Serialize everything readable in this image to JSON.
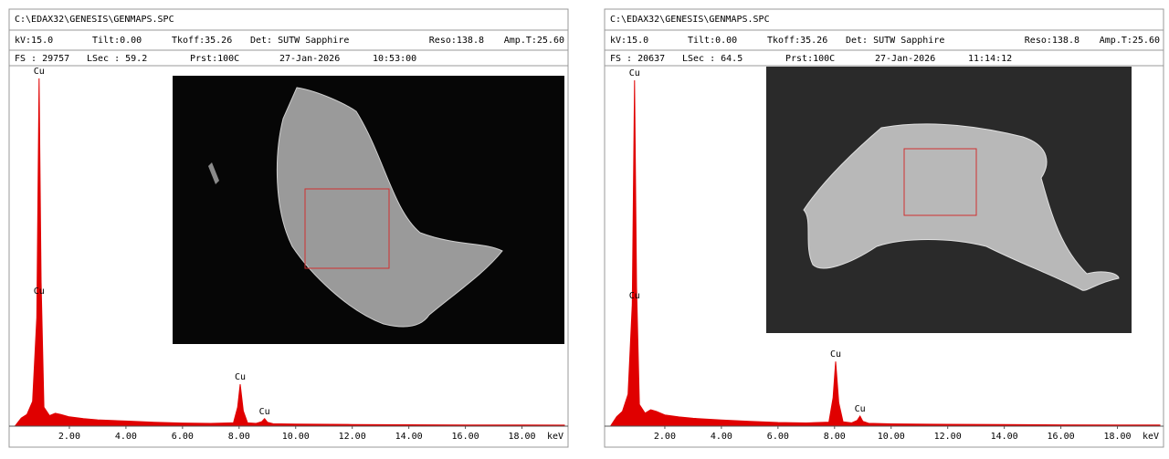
{
  "chart_data": [
    {
      "type": "area",
      "path": "C:\\EDAX32\\GENESIS\\GENMAPS.SPC",
      "kv": "kV:15.0",
      "tilt": "Tilt:0.00",
      "tkoff": "Tkoff:35.26",
      "det": "Det: SUTW Sapphire",
      "reso": "Reso:138.8",
      "amp": "Amp.T:25.60",
      "fs": "FS : 29757",
      "lsec": "LSec : 59.2",
      "prst": "Prst:100C",
      "date": "27-Jan-2026",
      "time": "10:53:00",
      "x_label": "keV",
      "color": "#e00000",
      "x": [
        0.1,
        0.2,
        0.3,
        0.5,
        0.7,
        0.85,
        0.93,
        1.0,
        1.1,
        1.3,
        1.5,
        1.7,
        2.0,
        2.5,
        3,
        4,
        5,
        6,
        7,
        7.8,
        7.95,
        8.04,
        8.15,
        8.3,
        8.6,
        8.8,
        8.9,
        9.0,
        9.2,
        10,
        12,
        14,
        16,
        18,
        19.5
      ],
      "values": [
        0,
        300,
        600,
        900,
        2000,
        9000,
        29000,
        12000,
        1500,
        800,
        1000,
        900,
        700,
        550,
        450,
        350,
        250,
        180,
        150,
        200,
        1500,
        3430,
        1200,
        200,
        150,
        300,
        550,
        250,
        120,
        90,
        60,
        40,
        25,
        15,
        10
      ],
      "xlim": [
        0,
        19.5
      ],
      "ylim": [
        0,
        29757
      ],
      "xticks": [
        {
          "value": 2,
          "label": "2.00"
        },
        {
          "value": 4,
          "label": "4.00"
        },
        {
          "value": 6,
          "label": "6.00"
        },
        {
          "value": 8,
          "label": "8.00"
        },
        {
          "value": 10,
          "label": "10.00"
        },
        {
          "value": 12,
          "label": "12.00"
        },
        {
          "value": 14,
          "label": "14.00"
        },
        {
          "value": 16,
          "label": "16.00"
        },
        {
          "value": 18,
          "label": "18.00"
        }
      ],
      "peak_labels": [
        {
          "text": "Cu",
          "x": 0.93,
          "y": 29000
        },
        {
          "text": "Cu",
          "x": 0.93,
          "y": 10600
        },
        {
          "text": "Cu",
          "x": 8.04,
          "y": 3430
        },
        {
          "text": "Cu",
          "x": 8.9,
          "y": 550
        }
      ]
    },
    {
      "type": "area",
      "path": "C:\\EDAX32\\GENESIS\\GENMAPS.SPC",
      "kv": "kV:15.0",
      "tilt": "Tilt:0.00",
      "tkoff": "Tkoff:35.26",
      "det": "Det: SUTW Sapphire",
      "reso": "Reso:138.8",
      "amp": "Amp.T:25.60",
      "fs": "FS : 20637",
      "lsec": "LSec : 64.5",
      "prst": "Prst:100C",
      "date": "27-Jan-2026",
      "time": "11:14:12",
      "x_label": "keV",
      "color": "#e00000",
      "x": [
        0.1,
        0.2,
        0.3,
        0.5,
        0.7,
        0.85,
        0.93,
        1.0,
        1.1,
        1.3,
        1.5,
        1.7,
        2.0,
        2.5,
        3,
        4,
        5,
        6,
        7,
        7.8,
        7.95,
        8.04,
        8.15,
        8.3,
        8.6,
        8.8,
        8.9,
        9.0,
        9.2,
        10,
        12,
        14,
        16,
        18,
        19.5
      ],
      "values": [
        0,
        250,
        500,
        800,
        1800,
        7000,
        20000,
        8000,
        1200,
        700,
        900,
        800,
        600,
        480,
        400,
        300,
        220,
        160,
        130,
        180,
        1600,
        3700,
        1300,
        200,
        140,
        280,
        530,
        230,
        110,
        80,
        55,
        35,
        22,
        14,
        9
      ],
      "xlim": [
        0,
        19.5
      ],
      "ylim": [
        0,
        20637
      ],
      "xticks": [
        {
          "value": 2,
          "label": "2.00"
        },
        {
          "value": 4,
          "label": "4.00"
        },
        {
          "value": 6,
          "label": "6.00"
        },
        {
          "value": 8,
          "label": "8.00"
        },
        {
          "value": 10,
          "label": "10.00"
        },
        {
          "value": 12,
          "label": "12.00"
        },
        {
          "value": 14,
          "label": "14.00"
        },
        {
          "value": 16,
          "label": "16.00"
        },
        {
          "value": 18,
          "label": "18.00"
        }
      ],
      "peak_labels": [
        {
          "text": "Cu",
          "x": 0.93,
          "y": 20000
        },
        {
          "text": "Cu",
          "x": 0.93,
          "y": 7090
        },
        {
          "text": "Cu",
          "x": 8.04,
          "y": 3700
        },
        {
          "text": "Cu",
          "x": 8.9,
          "y": 530
        }
      ]
    }
  ]
}
